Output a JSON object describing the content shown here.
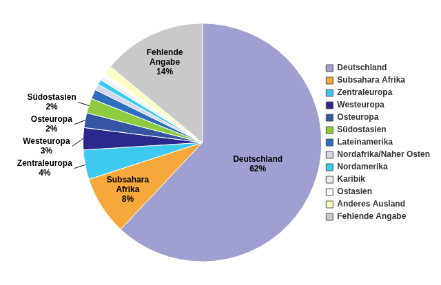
{
  "chart_data": {
    "type": "pie",
    "categories": [
      "Deutschland",
      "Subsahara Afrika",
      "Zentraleuropa",
      "Westeuropa",
      "Osteuropa",
      "Südostasien",
      "Lateinamerika",
      "Nordafrika/Naher Osten",
      "Nordamerika",
      "Karibik",
      "Ostasien",
      "Anderes Ausland",
      "Fehlende Angabe"
    ],
    "values": [
      62,
      8,
      4,
      3,
      2,
      2,
      1.3,
      0.8,
      0.7,
      0.5,
      0.5,
      1.2,
      14
    ],
    "colors": [
      "#9f9fd2",
      "#f7a83a",
      "#3ec9f0",
      "#2b2a8c",
      "#3656a3",
      "#8fcb3e",
      "#2c6fbe",
      "#d6d6ea",
      "#38cdef",
      "#ececf2",
      "#fbfbfb",
      "#fdfdc2",
      "#c9c9c9"
    ],
    "data_labels": true,
    "value_labels": [
      "62%",
      "8%",
      "4%",
      "3%",
      "2%",
      "2%",
      null,
      null,
      null,
      null,
      null,
      null,
      "14%"
    ],
    "legend": "right"
  }
}
